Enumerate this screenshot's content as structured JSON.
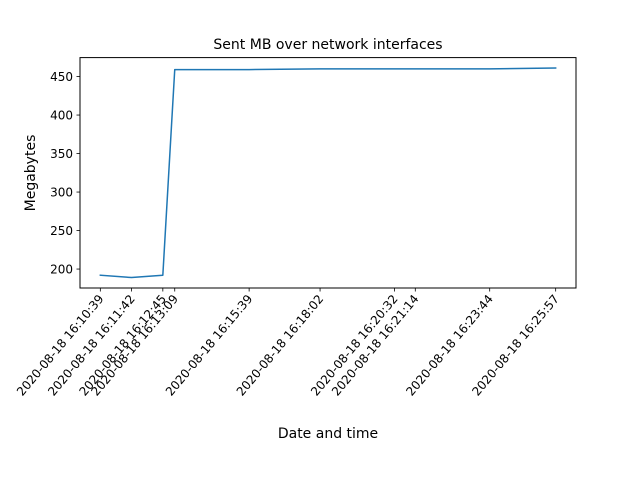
{
  "chart_data": {
    "type": "line",
    "title": "Sent MB over network interfaces",
    "xlabel": "Date and time",
    "ylabel": "Megabytes",
    "x": [
      "2020-08-18 16:10:39",
      "2020-08-18 16:11:42",
      "2020-08-18 16:12:45",
      "2020-08-18 16:13:09",
      "2020-08-18 16:15:39",
      "2020-08-18 16:18:02",
      "2020-08-18 16:20:32",
      "2020-08-18 16:21:14",
      "2020-08-18 16:23:44",
      "2020-08-18 16:25:57"
    ],
    "series": [
      {
        "name": "",
        "color": "#1f77b4",
        "values": [
          192,
          189,
          192,
          459,
          459,
          460,
          460,
          460,
          460,
          461
        ]
      }
    ],
    "yticks": [
      200,
      250,
      300,
      350,
      400,
      450
    ],
    "ylim": [
      175.4,
      474.6
    ],
    "xlim": [
      "2020-08-18 16:09:58",
      "2020-08-18 16:26:38"
    ],
    "grid": false,
    "legend": "none"
  }
}
